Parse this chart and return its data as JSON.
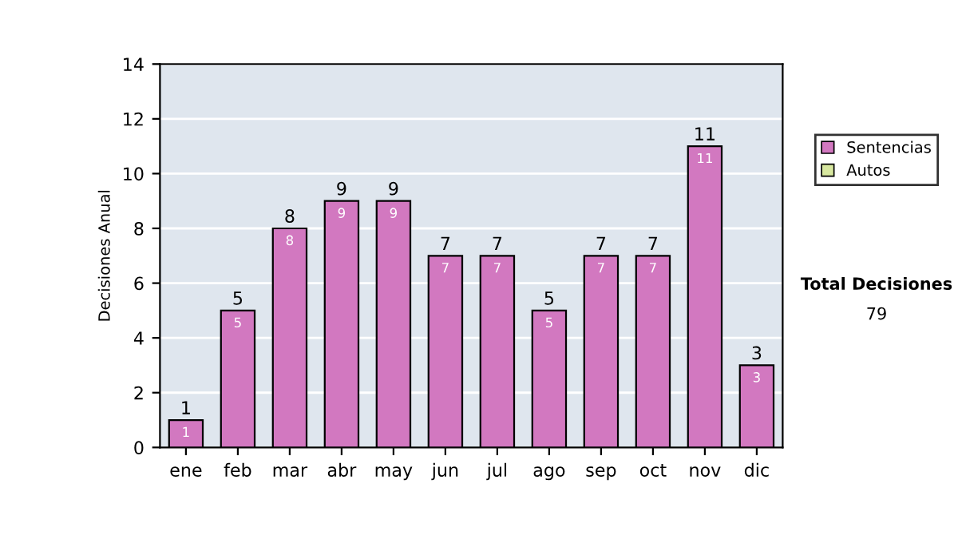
{
  "chart_data": {
    "type": "bar",
    "ylabel": "Decisiones Anual",
    "categories": [
      "ene",
      "feb",
      "mar",
      "abr",
      "may",
      "jun",
      "jul",
      "ago",
      "sep",
      "oct",
      "nov",
      "dic"
    ],
    "series": [
      {
        "name": "Sentencias",
        "color": "#d278c0",
        "values": [
          1,
          5,
          8,
          9,
          9,
          7,
          7,
          5,
          7,
          7,
          11,
          3
        ],
        "value_labels": [
          "1",
          "5",
          "8",
          "9",
          "9",
          "7",
          "7",
          "5",
          "7",
          "7",
          "11",
          "3"
        ]
      },
      {
        "name": "Autos",
        "color": "#d8e8a0",
        "values": [
          null,
          null,
          null,
          null,
          null,
          null,
          null,
          null,
          null,
          null,
          null,
          null
        ]
      }
    ],
    "ylim": [
      0,
      14
    ],
    "yticks": [
      0,
      2,
      4,
      6,
      8,
      10,
      12,
      14
    ],
    "grid": "y",
    "legend": "right",
    "annotations": [
      "Total Decisiones",
      "79",
      {
        "text": "1",
        "x": "ene",
        "y": 1
      },
      {
        "text": "5",
        "x": "feb",
        "y": 5
      },
      {
        "text": "8",
        "x": "mar",
        "y": 8
      },
      {
        "text": "9",
        "x": "abr",
        "y": 9
      },
      {
        "text": "9",
        "x": "may",
        "y": 9
      },
      {
        "text": "7",
        "x": "jun",
        "y": 7
      },
      {
        "text": "7",
        "x": "jul",
        "y": 7
      },
      {
        "text": "5",
        "x": "ago",
        "y": 5
      },
      {
        "text": "7",
        "x": "sep",
        "y": 7
      },
      {
        "text": "7",
        "x": "oct",
        "y": 7
      },
      {
        "text": "11",
        "x": "nov",
        "y": 11
      },
      {
        "text": "3",
        "x": "dic",
        "y": 3
      }
    ]
  }
}
